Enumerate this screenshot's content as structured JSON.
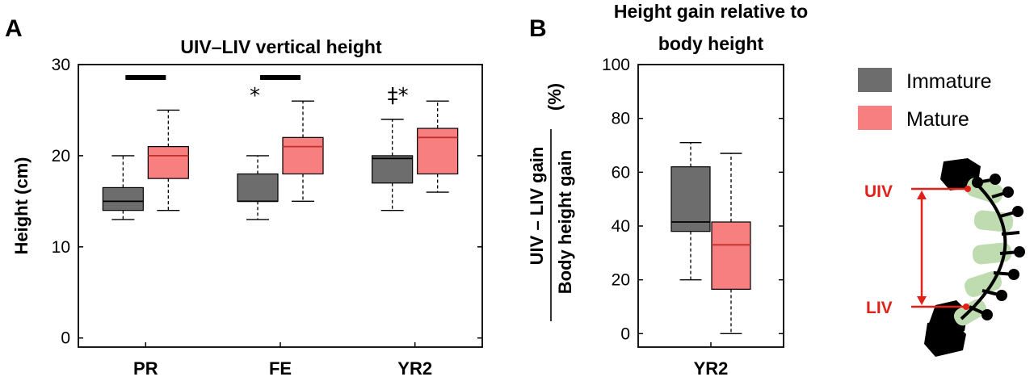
{
  "colors": {
    "immature": "#6d6d6d",
    "mature": "#f77f7f",
    "median": "#000000",
    "red": "#e0211a",
    "green": "#bfdcb0"
  },
  "legend": [
    {
      "name": "Immature",
      "color": "#6d6d6d"
    },
    {
      "name": "Mature",
      "color": "#f77f7f"
    }
  ],
  "chart_data": [
    {
      "panel": "A",
      "type": "box",
      "title": "UIV–LIV vertical height",
      "ylabel": "Height (cm)",
      "ylim": [
        -1,
        30
      ],
      "yticks": [
        "0",
        "10",
        "20",
        "30"
      ],
      "categories": [
        "PR",
        "FE",
        "YR2"
      ],
      "series": [
        {
          "name": "Immature",
          "boxes": [
            {
              "whisker_low": 13,
              "q1": 14,
              "median": 15,
              "q3": 16.5,
              "whisker_high": 20
            },
            {
              "whisker_low": 13,
              "q1": 15,
              "median": 15,
              "q3": 18,
              "whisker_high": 20
            },
            {
              "whisker_low": 14,
              "q1": 17,
              "median": 19.7,
              "q3": 20,
              "whisker_high": 24
            }
          ]
        },
        {
          "name": "Mature",
          "boxes": [
            {
              "whisker_low": 14,
              "q1": 17.5,
              "median": 20,
              "q3": 21,
              "whisker_high": 25
            },
            {
              "whisker_low": 15,
              "q1": 18,
              "median": 21,
              "q3": 22,
              "whisker_high": 26
            },
            {
              "whisker_low": 16,
              "q1": 18,
              "median": 22,
              "q3": 23,
              "whisker_high": 26
            }
          ]
        }
      ],
      "annotations": [
        {
          "category": "PR",
          "bar": true,
          "symbol": ""
        },
        {
          "category": "FE",
          "bar": true,
          "symbol": "*"
        },
        {
          "category": "YR2",
          "bar": false,
          "symbol": "‡*"
        }
      ]
    },
    {
      "panel": "B",
      "type": "box",
      "title_lines": [
        "Height gain relative to",
        "body height"
      ],
      "ylabel_numerator": "UIV – LIV gain",
      "ylabel_denominator": "Body height gain",
      "ylabel_unit": "(%)",
      "ylim": [
        -5,
        100
      ],
      "yticks": [
        "0",
        "20",
        "40",
        "60",
        "80",
        "100"
      ],
      "categories": [
        "YR2"
      ],
      "series": [
        {
          "name": "Immature",
          "boxes": [
            {
              "whisker_low": 20,
              "q1": 38,
              "median": 41.5,
              "q3": 62,
              "whisker_high": 71
            }
          ]
        },
        {
          "name": "Mature",
          "boxes": [
            {
              "whisker_low": 0,
              "q1": 16.5,
              "median": 33,
              "q3": 41.5,
              "whisker_high": 67
            }
          ]
        }
      ]
    }
  ],
  "panel_letters": [
    "A",
    "B"
  ],
  "diagram": {
    "upper_label": "UIV",
    "lower_label": "LIV"
  }
}
